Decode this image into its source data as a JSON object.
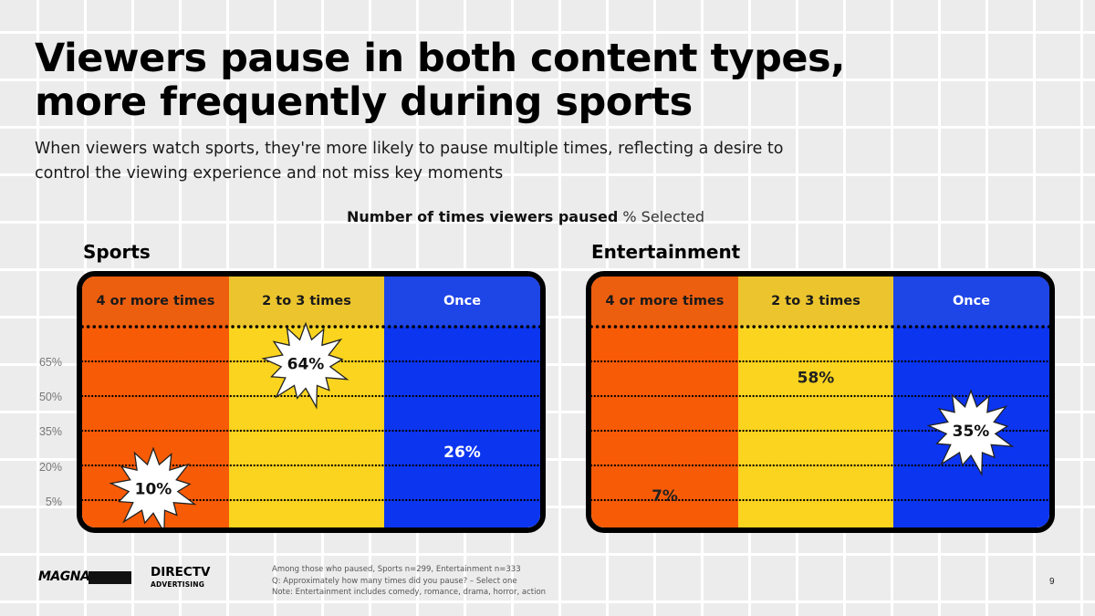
{
  "slide": {
    "title": "Viewers pause in both content types, more frequently during sports",
    "subtitle": "When viewers watch sports, they're more likely to pause multiple times, reflecting a desire to control the viewing experience and not miss key moments",
    "chart_heading_bold": "Number of times viewers paused",
    "chart_heading_light": "% Selected",
    "page_number": "9",
    "notes": [
      "Among those who paused, Sports n=299, Entertainment n=333",
      "Q: Approximately how many times did you pause? – Select one",
      "Note: Entertainment includes comedy, romance, drama, horror, action"
    ],
    "logos": {
      "magna": "MAGNA",
      "directv_line1": "DIRECTV",
      "directv_line2": "ADVERTISING"
    }
  },
  "colors": {
    "orange": "#f85b06",
    "yellow": "#fad41e",
    "blue": "#0c35f0",
    "border": "#000000"
  },
  "chart_data": [
    {
      "type": "bar",
      "title": "Sports",
      "categories": [
        "4 or more times",
        "2 to 3 times",
        "Once"
      ],
      "values": [
        10,
        64,
        26
      ],
      "value_labels": [
        "10%",
        "64%",
        "26%"
      ],
      "burst": [
        true,
        true,
        false
      ],
      "yticks": [
        "65%",
        "50%",
        "35%",
        "20%",
        "5%"
      ],
      "ytick_values": [
        65,
        50,
        35,
        20,
        5
      ],
      "ylabel": "% Selected"
    },
    {
      "type": "bar",
      "title": "Entertainment",
      "categories": [
        "4 or more times",
        "2 to 3 times",
        "Once"
      ],
      "values": [
        7,
        58,
        35
      ],
      "value_labels": [
        "7%",
        "58%",
        "35%"
      ],
      "burst": [
        false,
        false,
        true
      ],
      "ylabel": "% Selected"
    }
  ]
}
